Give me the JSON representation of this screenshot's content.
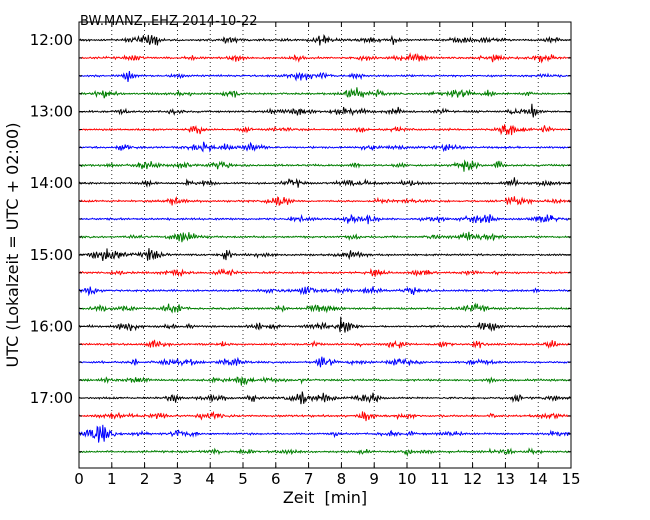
{
  "chart_data": {
    "type": "line",
    "title": "BW.MANZ..EHZ 2014-10-22",
    "xlabel": "Zeit  [min]",
    "ylabel": "UTC (Lokalzeit = UTC + 02:00)",
    "xlim": [
      0,
      15
    ],
    "x_ticks": [
      "0",
      "1",
      "2",
      "3",
      "4",
      "5",
      "6",
      "7",
      "8",
      "9",
      "10",
      "11",
      "12",
      "13",
      "14",
      "15"
    ],
    "y_ticks": [
      "12:00",
      "13:00",
      "14:00",
      "15:00",
      "16:00",
      "17:00"
    ],
    "grid": "x-dotted",
    "trace_interval_min": 15,
    "trace_starts": [
      "12:00",
      "12:15",
      "12:30",
      "12:45",
      "13:00",
      "13:15",
      "13:30",
      "13:45",
      "14:00",
      "14:15",
      "14:30",
      "14:45",
      "15:00",
      "15:15",
      "15:30",
      "15:45",
      "16:00",
      "16:15",
      "16:30",
      "16:45",
      "17:00",
      "17:15",
      "17:30",
      "17:45"
    ],
    "trace_colors": [
      "#000000",
      "#ff0000",
      "#0000ff",
      "#007f00"
    ],
    "data_shape": "continuous seismogram traces (noise amplitude)"
  }
}
